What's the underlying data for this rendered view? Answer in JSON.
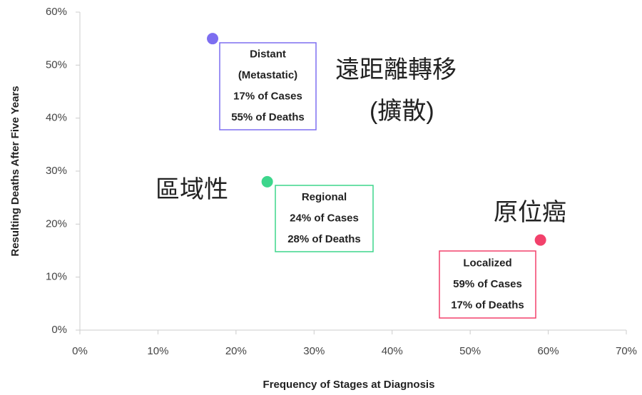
{
  "chart_data": {
    "type": "scatter",
    "xlabel": "Frequency of Stages at Diagnosis",
    "ylabel": "Resulting Deaths After Five Years",
    "x": [
      17,
      24,
      59
    ],
    "values": [
      55,
      28,
      17
    ],
    "colors": [
      "#7d6ef0",
      "#3dd68c",
      "#f2416b"
    ],
    "xlim": [
      0,
      70
    ],
    "xticks": [
      {
        "value": 0,
        "label": "0%"
      },
      {
        "value": 10,
        "label": "10%"
      },
      {
        "value": 20,
        "label": "20%"
      },
      {
        "value": 30,
        "label": "30%"
      },
      {
        "value": 40,
        "label": "40%"
      },
      {
        "value": 50,
        "label": "50%"
      },
      {
        "value": 60,
        "label": "60%"
      },
      {
        "value": 70,
        "label": "70%"
      }
    ],
    "ylim": [
      0,
      60
    ],
    "yticks": [
      {
        "value": 0,
        "label": "0%"
      },
      {
        "value": 10,
        "label": "10%"
      },
      {
        "value": 20,
        "label": "20%"
      },
      {
        "value": 30,
        "label": "30%"
      },
      {
        "value": 40,
        "label": "40%"
      },
      {
        "value": 50,
        "label": "50%"
      },
      {
        "value": 60,
        "label": "60%"
      }
    ],
    "annotations": [
      {
        "lines": [
          "Distant",
          "(Metastatic)",
          "17% of Cases",
          "55% of Deaths"
        ]
      },
      {
        "lines": [
          "Regional",
          "24% of Cases",
          "28% of Deaths"
        ]
      },
      {
        "lines": [
          "Localized",
          "59% of Cases",
          "17% of Deaths"
        ]
      }
    ],
    "labels": [
      "遠距離轉移",
      "(擴散)",
      "區域性",
      "原位癌"
    ]
  }
}
